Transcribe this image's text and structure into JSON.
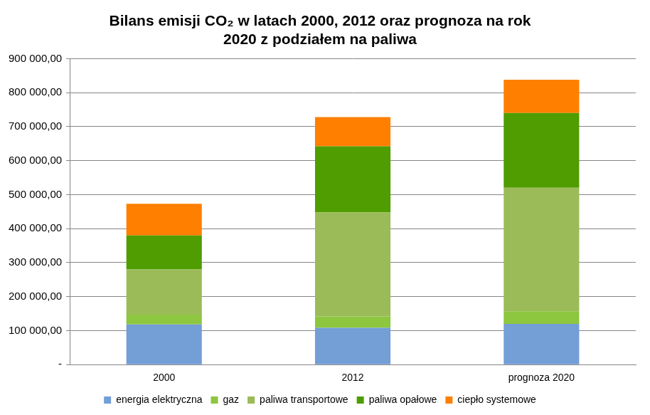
{
  "chart_data": {
    "type": "bar",
    "title": [
      "Bilans emisji CO₂ w latach 2000, 2012 oraz prognoza na rok",
      "2020 z podziałem na paliwa"
    ],
    "categories": [
      "2000",
      "2012",
      "prognoza 2020"
    ],
    "series": [
      {
        "name": "energia elektryczna",
        "color": "#739ed6",
        "values": [
          118000,
          108000,
          120000
        ]
      },
      {
        "name": "gaz",
        "color": "#8dc63f",
        "values": [
          29000,
          34000,
          37000
        ]
      },
      {
        "name": "paliwa transportowe",
        "color": "#9bbb59",
        "values": [
          133000,
          306000,
          363000
        ]
      },
      {
        "name": "paliwa opałowe",
        "color": "#4f9d00",
        "values": [
          100000,
          194000,
          220000
        ]
      },
      {
        "name": "ciepło systemowe",
        "color": "#ff7f00",
        "values": [
          93000,
          86000,
          98000
        ]
      }
    ],
    "stacked": true,
    "ylim": [
      0,
      900000
    ],
    "yticks": [
      {
        "value": 0,
        "label": "-"
      },
      {
        "value": 100000,
        "label": "100 000,00"
      },
      {
        "value": 200000,
        "label": "200 000,00"
      },
      {
        "value": 300000,
        "label": "300 000,00"
      },
      {
        "value": 400000,
        "label": "400 000,00"
      },
      {
        "value": 500000,
        "label": "500 000,00"
      },
      {
        "value": 600000,
        "label": "600 000,00"
      },
      {
        "value": 700000,
        "label": "700 000,00"
      },
      {
        "value": 800000,
        "label": "800 000,00"
      },
      {
        "value": 900000,
        "label": "900 000,00"
      }
    ],
    "grid": true,
    "legend": "bottom"
  }
}
